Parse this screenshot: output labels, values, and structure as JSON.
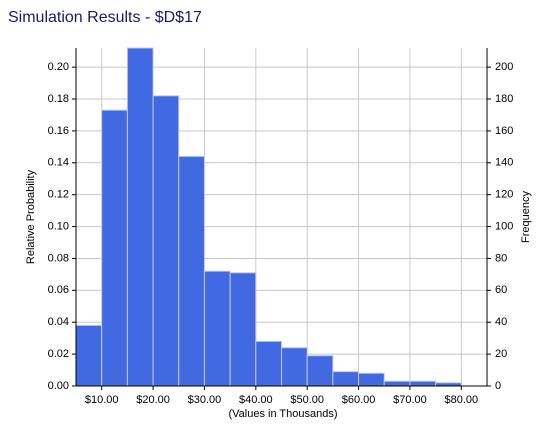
{
  "chart_data": {
    "type": "histogram",
    "title": "Simulation Results - $D$17",
    "xlabel": "(Values in Thousands)",
    "ylabel": "Relative Probability",
    "y2label": "Frequency",
    "bins": [
      5,
      10,
      15,
      20,
      25,
      30,
      35,
      40,
      45,
      50,
      55,
      60,
      65,
      70,
      75,
      80
    ],
    "values": [
      0.038,
      0.173,
      0.212,
      0.182,
      0.144,
      0.072,
      0.071,
      0.028,
      0.024,
      0.019,
      0.009,
      0.008,
      0.003,
      0.003,
      0.002
    ],
    "color": "#4169e1",
    "xlim": [
      5,
      85
    ],
    "xticks": [
      {
        "value": 10,
        "label": "$10.00"
      },
      {
        "value": 20,
        "label": "$20.00"
      },
      {
        "value": 30,
        "label": "$30.00"
      },
      {
        "value": 40,
        "label": "$40.00"
      },
      {
        "value": 50,
        "label": "$50.00"
      },
      {
        "value": 60,
        "label": "$60.00"
      },
      {
        "value": 70,
        "label": "$70.00"
      },
      {
        "value": 80,
        "label": "$80.00"
      }
    ],
    "ylim": [
      0,
      0.212
    ],
    "yticks": [
      {
        "value": 0,
        "label": "0.00"
      },
      0.02,
      0.04,
      0.06,
      0.08,
      {
        "value": 0.1,
        "label": "0.10"
      },
      0.12,
      0.14,
      0.16,
      0.18,
      {
        "value": 0.2,
        "label": "0.20"
      }
    ],
    "y2lim": [
      0,
      212
    ],
    "y2ticks": [
      0,
      20,
      40,
      60,
      80,
      100,
      120,
      140,
      160,
      180,
      200
    ],
    "grid": true
  }
}
